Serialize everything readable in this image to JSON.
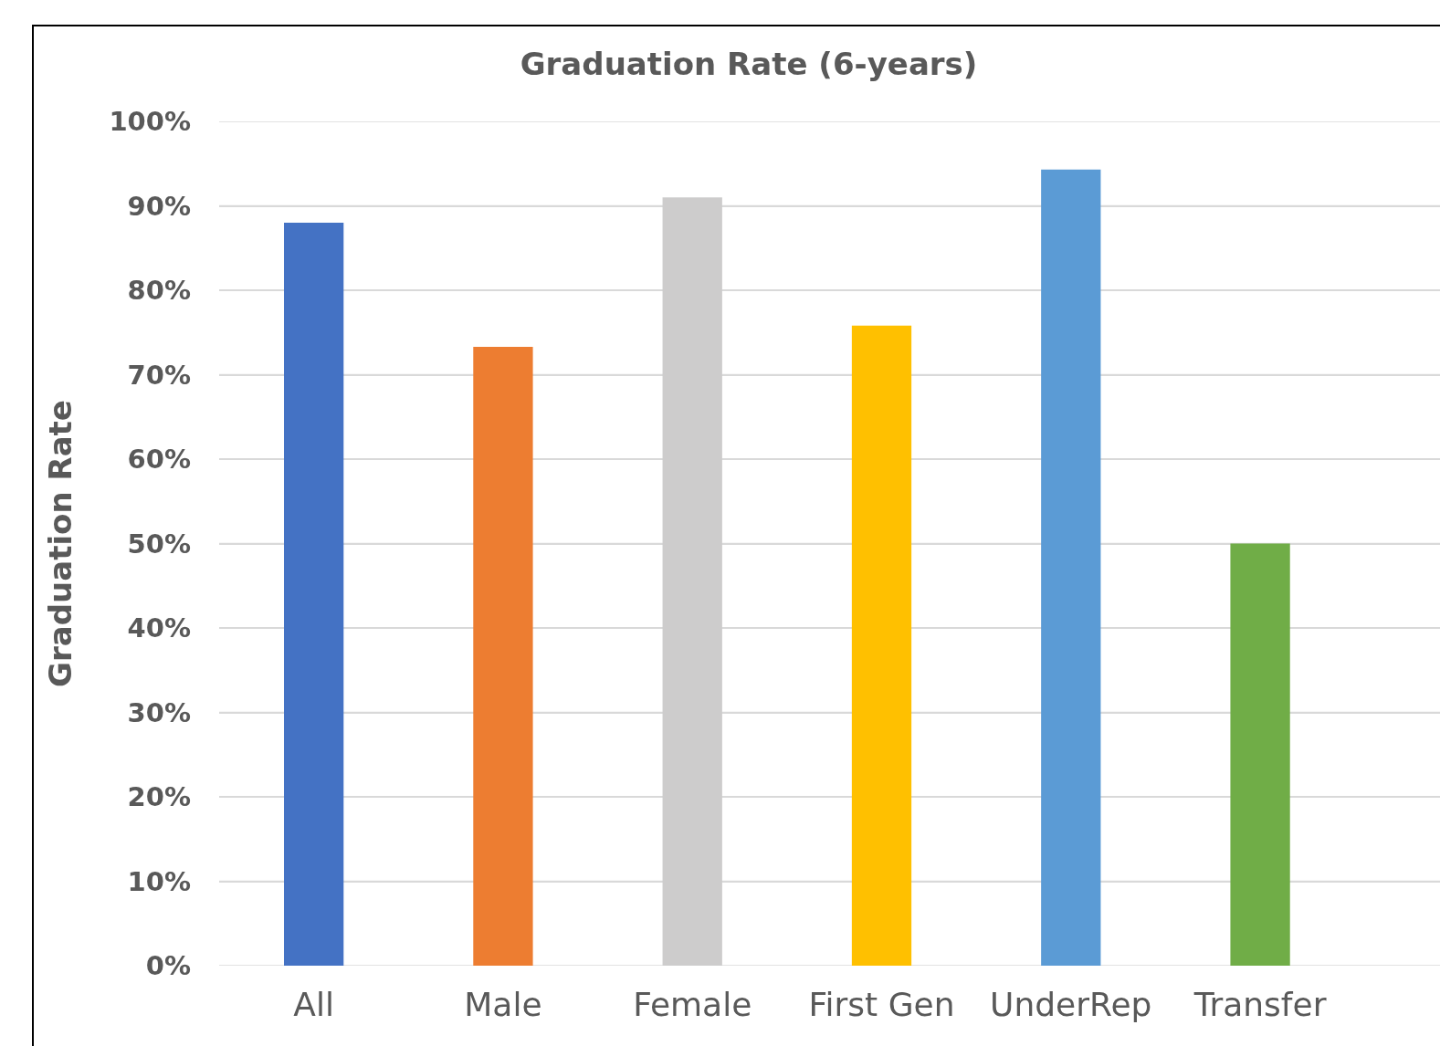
{
  "chart_data": {
    "type": "bar",
    "title": "Graduation Rate (6-years)",
    "ylabel": "Graduation Rate",
    "categories": [
      "All",
      "Male",
      "Female",
      "First Gen",
      "UnderRep",
      "Transfer"
    ],
    "values": [
      88,
      73.3,
      91,
      75.8,
      94.3,
      50
    ],
    "colors": [
      "#4472c4",
      "#ed7d31",
      "#cdcccc",
      "#ffc000",
      "#5b9bd5",
      "#70ad47"
    ],
    "ylim": [
      0,
      100
    ],
    "yticks": [
      {
        "value": 0,
        "label": "0%"
      },
      {
        "value": 10,
        "label": "10%"
      },
      {
        "value": 20,
        "label": "20%"
      },
      {
        "value": 30,
        "label": "30%"
      },
      {
        "value": 40,
        "label": "40%"
      },
      {
        "value": 50,
        "label": "50%"
      },
      {
        "value": 60,
        "label": "60%"
      },
      {
        "value": 70,
        "label": "70%"
      },
      {
        "value": 80,
        "label": "80%"
      },
      {
        "value": 90,
        "label": "90%"
      },
      {
        "value": 100,
        "label": "100%"
      }
    ],
    "grid": "y"
  }
}
